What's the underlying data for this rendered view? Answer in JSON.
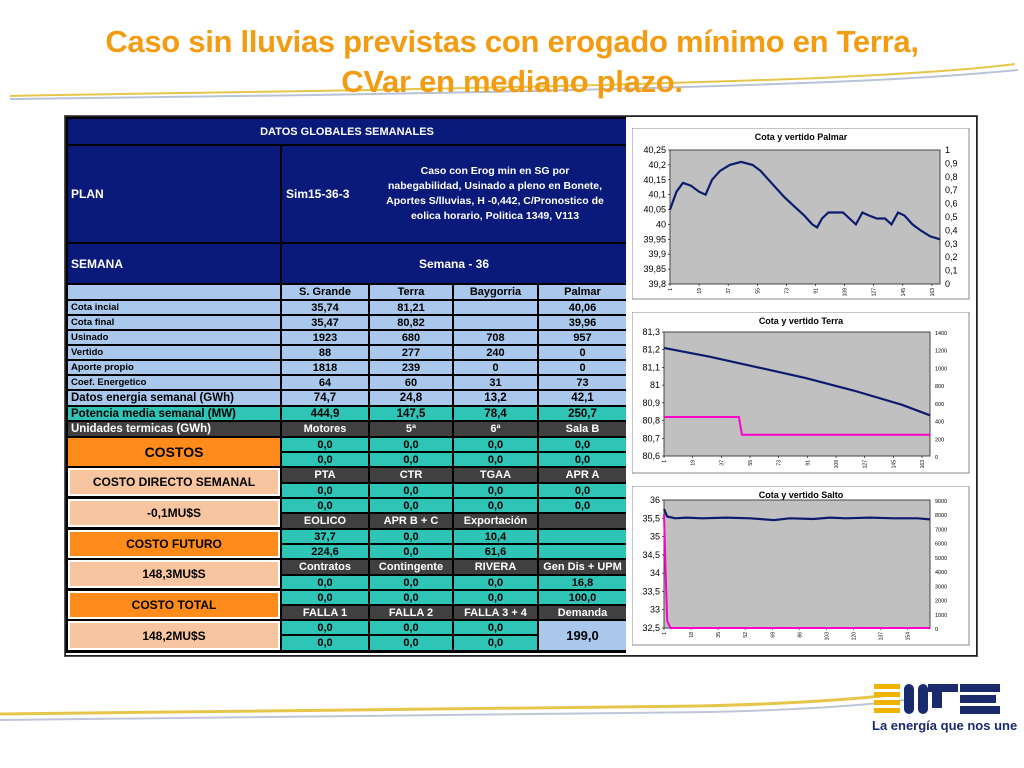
{
  "title": {
    "line1": "Caso sin lluvias previstas con erogado mínimo en Terra,",
    "line2": "CVar en mediano plazo."
  },
  "table": {
    "header": "DATOS GLOBALES SEMANALES",
    "plan_label": "PLAN",
    "plan_value": "Sim15-36-3",
    "plan_desc": [
      "Caso con  Erog min en SG por",
      "nabegabilidad, Usinado a pleno en Bonete,",
      "Aportes S/lluvias, H -0,442, C/Pronostico de",
      "eolica horario, Politica 1349, V113"
    ],
    "semana_label": "SEMANA",
    "semana_value": "Semana - 36",
    "columns": [
      "S. Grande",
      "Terra",
      "Baygorria",
      "Palmar"
    ],
    "rows": [
      {
        "label": "Cota incial",
        "values": [
          "35,74",
          "81,21",
          "",
          "40,06"
        ]
      },
      {
        "label": "Cota final",
        "values": [
          "35,47",
          "80,82",
          "",
          "39,96"
        ]
      },
      {
        "label": "Usinado",
        "values": [
          "1923",
          "680",
          "708",
          "957"
        ]
      },
      {
        "label": "Vertido",
        "values": [
          "88",
          "277",
          "240",
          "0"
        ]
      },
      {
        "label": "Aporte propio",
        "values": [
          "1818",
          "239",
          "0",
          "0"
        ]
      },
      {
        "label": "Coef. Energetico",
        "values": [
          "64",
          "60",
          "31",
          "73"
        ]
      },
      {
        "label": "Datos energia semanal  (GWh)",
        "values": [
          "74,7",
          "24,8",
          "13,2",
          "42,1"
        ]
      },
      {
        "label": "Potencia media semanal (MW)",
        "values": [
          "444,9",
          "147,5",
          "78,4",
          "250,7"
        ]
      }
    ],
    "termicas": {
      "label": "Unidades termicas (GWh)",
      "values": [
        "Motores",
        "5ª",
        "6ª",
        "Sala B"
      ]
    },
    "costos_label": "COSTOS",
    "costo_directo_label": "COSTO DIRECTO SEMANAL",
    "costo_directo_value": "-0,1MU$S",
    "costo_futuro_label": "COSTO FUTURO",
    "costo_futuro_value": "148,3MU$S",
    "costo_total_label": "COSTO TOTAL",
    "costo_total_value": "148,2MU$S",
    "grid": [
      {
        "type": "val",
        "values": [
          "0,0",
          "0,0",
          "0,0",
          "0,0"
        ]
      },
      {
        "type": "val",
        "values": [
          "0,0",
          "0,0",
          "0,0",
          "0,0"
        ]
      },
      {
        "type": "hdr",
        "values": [
          "PTA",
          "CTR",
          "TGAA",
          "APR A"
        ]
      },
      {
        "type": "val",
        "values": [
          "0,0",
          "0,0",
          "0,0",
          "0,0"
        ]
      },
      {
        "type": "val",
        "values": [
          "0,0",
          "0,0",
          "0,0",
          "0,0"
        ]
      },
      {
        "type": "hdr",
        "values": [
          "EOLICO",
          "APR B + C",
          "Exportación",
          ""
        ]
      },
      {
        "type": "val",
        "values": [
          "37,7",
          "0,0",
          "10,4",
          ""
        ]
      },
      {
        "type": "val",
        "values": [
          "224,6",
          "0,0",
          "61,6",
          ""
        ]
      },
      {
        "type": "hdr",
        "values": [
          "Contratos",
          "Contingente",
          "RIVERA",
          "Gen Dis + UPM"
        ]
      },
      {
        "type": "val",
        "values": [
          "0,0",
          "0,0",
          "0,0",
          "16,8"
        ]
      },
      {
        "type": "val",
        "values": [
          "0,0",
          "0,0",
          "0,0",
          "100,0"
        ]
      },
      {
        "type": "hdr",
        "values": [
          "FALLA 1",
          "FALLA 2",
          "FALLA 3 + 4",
          "Demanda"
        ]
      },
      {
        "type": "val",
        "values": [
          "0,0",
          "0,0",
          "0,0",
          ""
        ]
      },
      {
        "type": "val",
        "values": [
          "0,0",
          "0,0",
          "0,0",
          ""
        ]
      }
    ],
    "demanda_value": "199,0"
  },
  "charts": [
    {
      "id": "palmar",
      "title": "Cota y vertido Palmar",
      "y_ticks": [
        "40,25",
        "40,2",
        "40,15",
        "40,1",
        "40,05",
        "40",
        "39,95",
        "39,9",
        "39,85",
        "39,8"
      ],
      "y2_ticks": [
        "1",
        "0,9",
        "0,8",
        "0,7",
        "0,6",
        "0,5",
        "0,4",
        "0,3",
        "0,2",
        "0,1",
        "0"
      ],
      "x_ticks": [
        "1",
        "19",
        "37",
        "55",
        "73",
        "91",
        "109",
        "127",
        "145",
        "163"
      ],
      "ylim": [
        39.8,
        40.25
      ],
      "y2lim": [
        0,
        1
      ],
      "xmax": 168,
      "cota": [
        [
          1,
          40.05
        ],
        [
          5,
          40.11
        ],
        [
          9,
          40.14
        ],
        [
          14,
          40.13
        ],
        [
          19,
          40.11
        ],
        [
          23,
          40.1
        ],
        [
          27,
          40.15
        ],
        [
          32,
          40.18
        ],
        [
          38,
          40.2
        ],
        [
          45,
          40.21
        ],
        [
          52,
          40.2
        ],
        [
          57,
          40.18
        ],
        [
          62,
          40.15
        ],
        [
          67,
          40.12
        ],
        [
          72,
          40.09
        ],
        [
          78,
          40.06
        ],
        [
          84,
          40.03
        ],
        [
          89,
          40.0
        ],
        [
          92,
          39.99
        ],
        [
          95,
          40.02
        ],
        [
          99,
          40.04
        ],
        [
          104,
          40.04
        ],
        [
          108,
          40.04
        ],
        [
          112,
          40.02
        ],
        [
          116,
          40.0
        ],
        [
          120,
          40.04
        ],
        [
          124,
          40.03
        ],
        [
          129,
          40.02
        ],
        [
          134,
          40.02
        ],
        [
          138,
          40.0
        ],
        [
          142,
          40.04
        ],
        [
          146,
          40.03
        ],
        [
          151,
          40.0
        ],
        [
          156,
          39.98
        ],
        [
          162,
          39.96
        ],
        [
          168,
          39.95
        ]
      ],
      "vertido": []
    },
    {
      "id": "terra",
      "title": "Cota y vertido Terra",
      "y_ticks": [
        "81,3",
        "81,2",
        "81,1",
        "81",
        "80,9",
        "80,8",
        "80,7",
        "80,6"
      ],
      "y2_ticks": [
        "1400",
        "1200",
        "1000",
        "800",
        "600",
        "400",
        "200",
        "0"
      ],
      "x_ticks": [
        "1",
        "19",
        "37",
        "55",
        "73",
        "91",
        "109",
        "127",
        "145",
        "163"
      ],
      "ylim": [
        80.6,
        81.3
      ],
      "y2lim": [
        0,
        1400
      ],
      "xmax": 168,
      "cota": [
        [
          1,
          81.21
        ],
        [
          30,
          81.16
        ],
        [
          60,
          81.1
        ],
        [
          90,
          81.04
        ],
        [
          120,
          80.97
        ],
        [
          150,
          80.89
        ],
        [
          168,
          80.83
        ]
      ],
      "vertido": [
        [
          1,
          440
        ],
        [
          48,
          440
        ],
        [
          50,
          240
        ],
        [
          168,
          240
        ]
      ]
    },
    {
      "id": "salto",
      "title": "Cota y vertido Salto",
      "y_ticks": [
        "36",
        "35,5",
        "35",
        "34,5",
        "34",
        "33,5",
        "33",
        "32,5"
      ],
      "y2_ticks": [
        "9000",
        "8000",
        "7000",
        "6000",
        "5000",
        "4000",
        "3000",
        "2000",
        "1000",
        "0"
      ],
      "x_ticks": [
        "1",
        "18",
        "35",
        "52",
        "69",
        "86",
        "103",
        "120",
        "137",
        "154"
      ],
      "ylim": [
        32.5,
        36
      ],
      "y2lim": [
        0,
        9000
      ],
      "xmax": 168,
      "cota": [
        [
          1,
          35.75
        ],
        [
          3,
          35.55
        ],
        [
          8,
          35.5
        ],
        [
          15,
          35.52
        ],
        [
          25,
          35.5
        ],
        [
          40,
          35.52
        ],
        [
          55,
          35.5
        ],
        [
          70,
          35.45
        ],
        [
          80,
          35.5
        ],
        [
          95,
          35.48
        ],
        [
          105,
          35.52
        ],
        [
          115,
          35.5
        ],
        [
          130,
          35.52
        ],
        [
          145,
          35.5
        ],
        [
          160,
          35.5
        ],
        [
          168,
          35.47
        ]
      ],
      "vertido": [
        [
          1,
          8000
        ],
        [
          2,
          4000
        ],
        [
          3,
          500
        ],
        [
          5,
          0
        ],
        [
          168,
          0
        ]
      ]
    }
  ],
  "colors": {
    "title": "#f39c12",
    "navy": "#0a1a7a",
    "cota_line": "#0d1b6e",
    "vertido_line": "#ff00cc"
  },
  "logo": {
    "text": "UTE",
    "tagline": "La energía que nos une"
  }
}
